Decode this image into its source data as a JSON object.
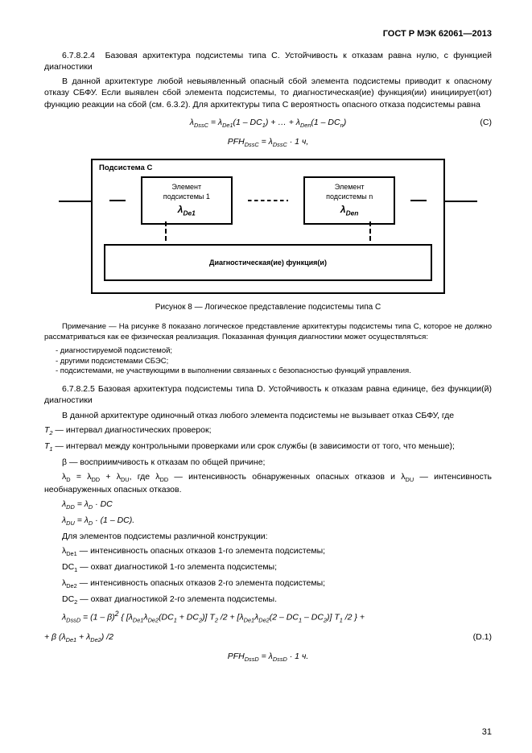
{
  "header": "ГОСТ Р МЭК 62061—2013",
  "s1_num": "6.7.8.2.4",
  "s1_title": "Базовая архитектура подсистемы типа C. Устойчивость к отказам равна нулю, с функци­ей диагностики",
  "s1_p1": "В данной архитектуре любой невыявленный опасный сбой элемента подсистемы приводит к опас­ному отказу СБФУ. Если выявлен сбой элемента подсистемы, то диагностическая(ие) функция(ии) инициирует(ют) функцию реакции на сбой (см. 6.3.2). Для архитектуры типа C вероятность опасного отказа подсистемы равна",
  "formula_c": "λ<sub>DssC</sub> = λ<sub>De1</sub>(1 – DC<sub>1</sub>) + … + λ<sub>Den</sub>(1 – DC<sub>n</sub>)",
  "formula_c_label": "(C)",
  "formula_c2": "PFH<sub>DssC</sub> = λ<sub>DssC</sub> · 1 ч,",
  "fig": {
    "outer_label": "Подсистема C",
    "elem1_t1": "Элемент",
    "elem1_t2": "подсистемы 1",
    "elem1_l": "λ<sub>De1</sub>",
    "elemn_t1": "Элемент",
    "elemn_t2": "подсистемы n",
    "elemn_l": "λ<sub>Den</sub>",
    "diag": "Диагностическая(ие) функция(и)",
    "caption": "Рисунок 8 — Логическое представление подсистемы типа C"
  },
  "note_intro": "Примечание — На рисунке 8 показано логическое представление архитектуры подсистемы типа C, которое не должно рассматриваться как ее физическая реализация. Показанная функция диагностики может осущест­вляться:",
  "note_li1": "- диагностируемой подсистемой;",
  "note_li2": "- другими подсистемами СБЭС;",
  "note_li3": "- подсистемами, не участвующими в выполнении связанных с безопасностью функций управления.",
  "s2_num": "6.7.8.2.5",
  "s2_title": "Базовая архитектура подсистемы типа D. Устойчивость к отказам равна единице, без функции(й) диагностики",
  "s2_p1": "В данной архитектуре одиночный отказ любого элемента подсистемы не вызывает отказ СБФУ, где",
  "s2_t2l": "T<sub>2</sub>",
  "s2_t2": " — интервал диагностических проверок;",
  "s2_t1l": "T<sub>1</sub>",
  "s2_t1": " — интервал между контрольными проверками или срок службы (в зависимости от того, что меньше);",
  "s2_beta": "β — восприимчивость к отказам по общей причине;",
  "s2_ld": "λ<sub>D</sub> = λ<sub>DD</sub> + λ<sub>DU</sub>, где λ<sub>DD</sub> — интенсивность обнаруженных опасных отказов и λ<sub>DU</sub> — интенсивность необнаруженных опасных отказов.",
  "f_dd": "λ<sub>DD</sub> = λ<sub>D</sub> · DC",
  "f_du": "λ<sub>DU</sub> = λ<sub>D</sub> · (1 – DC).",
  "s2_p2": "Для элементов подсистемы различной конструкции:",
  "def_lde1": "λ<sub>De1</sub> — интенсивность опасных отказов 1-го элемента подсистемы;",
  "def_dc1": "DC<sub>1</sub> — охват диагностикой 1-го элемента подсистемы;",
  "def_lde2": "λ<sub>De2</sub> — интенсивность опасных отказов 2-го элемента подсистемы;",
  "def_dc2": "DC<sub>2</sub> — охват диагностикой 2-го элемента подсистемы.",
  "f_d1a": "λ<sub>DssD</sub> = (1 – β)<sup>2</sup> { [λ<sub>De1</sub>λ<sub>De2</sub>(DC<sub>1</sub> + DC<sub>2</sub>)] T<sub>2</sub> /2 + [λ<sub>De1</sub>λ<sub>De2</sub>(2 – DC<sub>1</sub> – DC<sub>2</sub>)] T<sub>1</sub> /2 } +",
  "f_d1b": "+ β (λ<sub>De1</sub> + λ<sub>De2</sub>) /2",
  "f_d1_label": "(D.1)",
  "f_pfh_d": "PFH<sub>DssD</sub> = λ<sub>DssD</sub> · 1 ч.",
  "pagenum": "31"
}
